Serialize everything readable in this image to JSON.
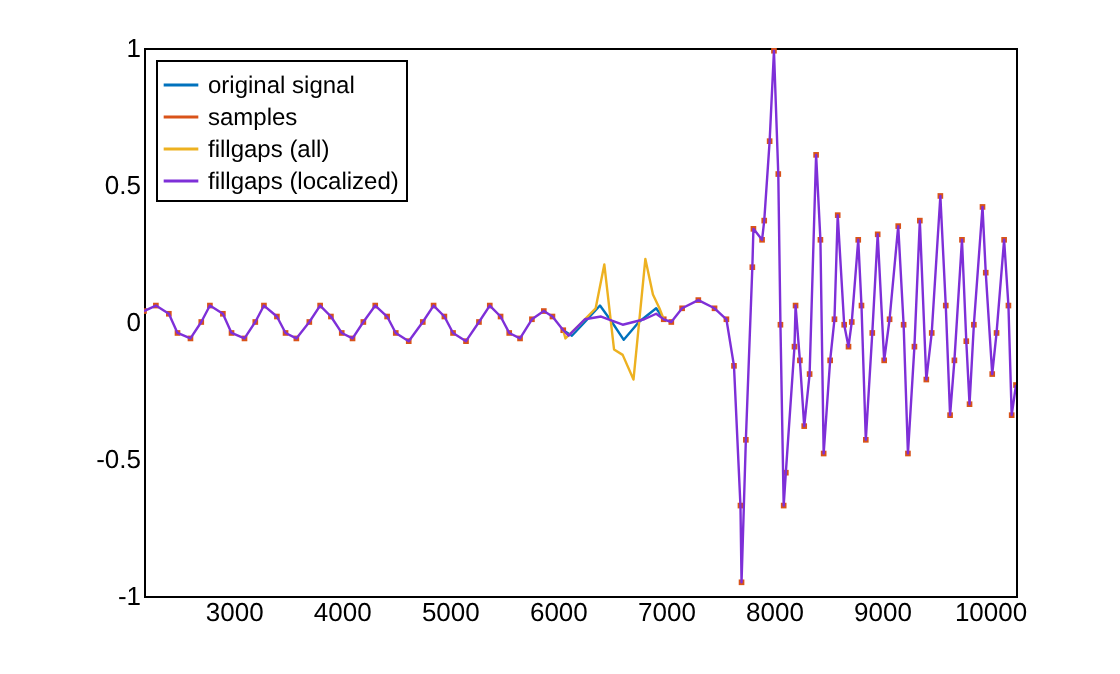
{
  "chart_data": {
    "type": "line",
    "line_style": "solid",
    "xlim": [
      2170,
      10240
    ],
    "ylim": [
      -1,
      1
    ],
    "xticks": [
      3000,
      4000,
      5000,
      6000,
      7000,
      8000,
      9000,
      10000
    ],
    "yticks": [
      -1,
      -0.5,
      0,
      0.5,
      1
    ],
    "grid": false,
    "legend": "top left",
    "series": [
      {
        "name": "original signal",
        "color": "#0072bd",
        "x": [
          6050,
          6130,
          6250,
          6390,
          6500,
          6610,
          6750,
          6910,
          6980
        ],
        "values": [
          -0.03,
          -0.05,
          0.0,
          0.06,
          0.0,
          -0.065,
          0.0,
          0.05,
          0.01
        ]
      },
      {
        "name": "samples",
        "color": "#d95319",
        "type": "scatter",
        "marker": "square",
        "x": [
          2170,
          2280,
          2400,
          2480,
          2600,
          2700,
          2780,
          2900,
          2980,
          3100,
          3200,
          3280,
          3400,
          3480,
          3580,
          3700,
          3800,
          3900,
          4000,
          4100,
          4200,
          4310,
          4420,
          4500,
          4620,
          4750,
          4850,
          4950,
          5030,
          5150,
          5270,
          5370,
          5470,
          5550,
          5650,
          5760,
          5870,
          5950,
          6050,
          6980,
          7050,
          7150,
          7300,
          7450,
          7560,
          7630,
          7690,
          7700,
          7740,
          7800,
          7810,
          7890,
          7910,
          7960,
          8000,
          8040,
          8060,
          8090,
          8110,
          8190,
          8200,
          8240,
          8280,
          8330,
          8390,
          8430,
          8460,
          8520,
          8560,
          8590,
          8650,
          8690,
          8720,
          8780,
          8810,
          8850,
          8910,
          8960,
          9020,
          9070,
          9150,
          9200,
          9240,
          9300,
          9350,
          9410,
          9460,
          9540,
          9590,
          9630,
          9670,
          9740,
          9780,
          9810,
          9850,
          9930,
          9960,
          10020,
          10060,
          10130,
          10170,
          10200,
          10240
        ],
        "values": [
          0.04,
          0.06,
          0.03,
          -0.04,
          -0.06,
          0.0,
          0.06,
          0.03,
          -0.04,
          -0.06,
          0.0,
          0.06,
          0.02,
          -0.04,
          -0.06,
          0.0,
          0.06,
          0.02,
          -0.04,
          -0.06,
          0.0,
          0.06,
          0.02,
          -0.04,
          -0.07,
          0.0,
          0.06,
          0.02,
          -0.04,
          -0.07,
          0.0,
          0.06,
          0.02,
          -0.04,
          -0.06,
          0.01,
          0.04,
          0.02,
          -0.03,
          0.01,
          0.0,
          0.05,
          0.08,
          0.05,
          0.01,
          -0.16,
          -0.67,
          -0.95,
          -0.43,
          0.2,
          0.34,
          0.3,
          0.37,
          0.66,
          0.99,
          0.54,
          -0.01,
          -0.67,
          -0.55,
          -0.09,
          0.06,
          -0.14,
          -0.38,
          -0.19,
          0.61,
          0.3,
          -0.48,
          -0.14,
          0.01,
          0.39,
          -0.01,
          -0.09,
          0.0,
          0.3,
          0.06,
          -0.43,
          -0.04,
          0.32,
          -0.14,
          0.01,
          0.35,
          -0.01,
          -0.48,
          -0.09,
          0.37,
          -0.21,
          -0.04,
          0.46,
          0.06,
          -0.34,
          -0.14,
          0.3,
          -0.07,
          -0.3,
          -0.01,
          0.42,
          0.18,
          -0.19,
          -0.04,
          0.3,
          0.06,
          -0.34,
          -0.23
        ]
      },
      {
        "name": "fillgaps (all)",
        "color": "#edb120",
        "x": [
          6050,
          6070,
          6200,
          6350,
          6430,
          6520,
          6600,
          6700,
          6810,
          6880,
          6940,
          6980
        ],
        "values": [
          -0.03,
          -0.06,
          -0.01,
          0.05,
          0.21,
          -0.1,
          -0.12,
          -0.21,
          0.23,
          0.1,
          0.05,
          0.01
        ]
      },
      {
        "name": "fillgaps (localized)",
        "color": "#7e2fd8",
        "x": [
          2170,
          2280,
          2400,
          2480,
          2600,
          2700,
          2780,
          2900,
          2980,
          3100,
          3200,
          3280,
          3400,
          3480,
          3580,
          3700,
          3800,
          3900,
          4000,
          4100,
          4200,
          4310,
          4420,
          4500,
          4620,
          4750,
          4850,
          4950,
          5030,
          5150,
          5270,
          5370,
          5470,
          5550,
          5650,
          5760,
          5870,
          5950,
          6050,
          6100,
          6250,
          6400,
          6600,
          6800,
          6910,
          6980,
          7050,
          7150,
          7300,
          7450,
          7560,
          7630,
          7690,
          7700,
          7740,
          7800,
          7810,
          7890,
          7910,
          7960,
          8000,
          8040,
          8060,
          8090,
          8110,
          8190,
          8200,
          8240,
          8280,
          8330,
          8390,
          8430,
          8460,
          8520,
          8560,
          8590,
          8650,
          8690,
          8720,
          8780,
          8810,
          8850,
          8910,
          8960,
          9020,
          9070,
          9150,
          9200,
          9240,
          9300,
          9350,
          9410,
          9460,
          9540,
          9590,
          9630,
          9670,
          9740,
          9780,
          9810,
          9850,
          9930,
          9960,
          10020,
          10060,
          10130,
          10170,
          10200,
          10240
        ],
        "values": [
          0.04,
          0.06,
          0.03,
          -0.04,
          -0.06,
          0.0,
          0.06,
          0.03,
          -0.04,
          -0.06,
          0.0,
          0.06,
          0.02,
          -0.04,
          -0.06,
          0.0,
          0.06,
          0.02,
          -0.04,
          -0.06,
          0.0,
          0.06,
          0.02,
          -0.04,
          -0.07,
          0.0,
          0.06,
          0.02,
          -0.04,
          -0.07,
          0.0,
          0.06,
          0.02,
          -0.04,
          -0.06,
          0.01,
          0.04,
          0.02,
          -0.03,
          -0.05,
          0.01,
          0.02,
          -0.01,
          0.01,
          0.03,
          0.01,
          0.0,
          0.05,
          0.08,
          0.05,
          0.01,
          -0.16,
          -0.67,
          -0.95,
          -0.43,
          0.2,
          0.34,
          0.3,
          0.37,
          0.66,
          0.99,
          0.54,
          -0.01,
          -0.67,
          -0.55,
          -0.09,
          0.06,
          -0.14,
          -0.38,
          -0.19,
          0.61,
          0.3,
          -0.48,
          -0.14,
          0.01,
          0.39,
          -0.01,
          -0.09,
          0.0,
          0.3,
          0.06,
          -0.43,
          -0.04,
          0.32,
          -0.14,
          0.01,
          0.35,
          -0.01,
          -0.48,
          -0.09,
          0.37,
          -0.21,
          -0.04,
          0.46,
          0.06,
          -0.34,
          -0.14,
          0.3,
          -0.07,
          -0.3,
          -0.01,
          0.42,
          0.18,
          -0.19,
          -0.04,
          0.3,
          0.06,
          -0.34,
          -0.23
        ]
      }
    ]
  }
}
